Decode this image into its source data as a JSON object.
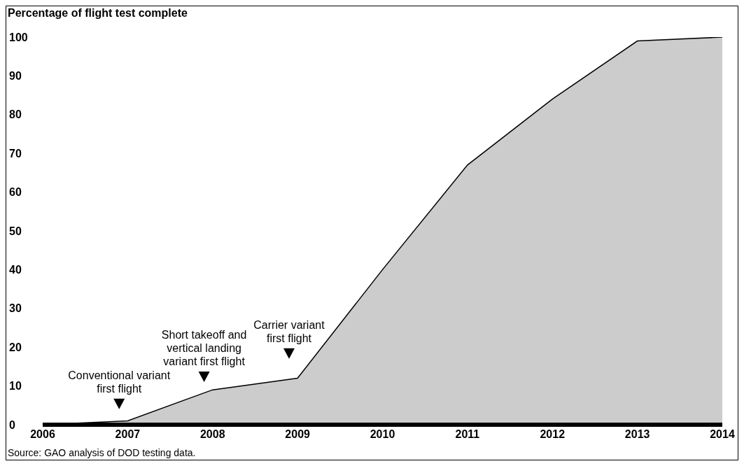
{
  "chart_data": {
    "type": "area",
    "ylabel": "Percentage of flight test complete",
    "x": [
      2006,
      2007,
      2008,
      2009,
      2010,
      2011,
      2012,
      2013,
      2014
    ],
    "series": [
      {
        "color": "#cccccc",
        "values": [
          0,
          1,
          9,
          12,
          40,
          67,
          84,
          99,
          100
        ]
      }
    ],
    "xlim": [
      2006,
      2014
    ],
    "xticks": [
      2006,
      2007,
      2008,
      2009,
      2010,
      2011,
      2012,
      2013,
      2014
    ],
    "ylim": [
      0,
      100
    ],
    "yticks": [
      0,
      10,
      20,
      30,
      40,
      50,
      60,
      70,
      80,
      90,
      100
    ],
    "grid": false,
    "legend": false,
    "annotations": [
      "Conventional variant first flight",
      "Short takeoff and vertical landing variant first flight",
      "Carrier variant first flight",
      "Source: GAO analysis of DOD testing data."
    ]
  }
}
